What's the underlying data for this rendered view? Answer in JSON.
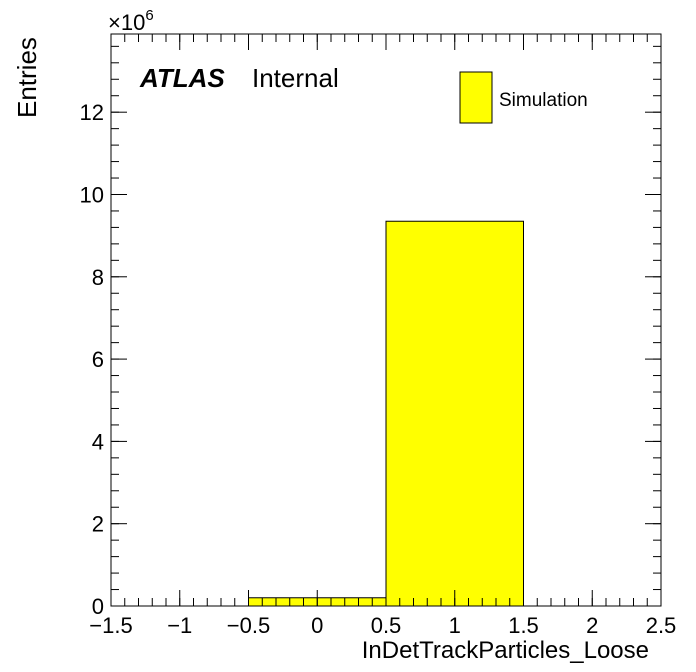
{
  "chart_data": {
    "type": "bar",
    "histogram": true,
    "bins": [
      {
        "low": -0.5,
        "high": 0.5,
        "value": 0.2
      },
      {
        "low": 0.5,
        "high": 1.5,
        "value": 9.35
      }
    ],
    "xlabel": "InDetTrackParticles_Loose",
    "ylabel": "Entries",
    "y_multiplier_base": "×10",
    "y_multiplier_exp": "6",
    "xlim": [
      -1.5,
      2.5
    ],
    "ylim": [
      0,
      13.9
    ],
    "x_major_ticks": [
      -1.5,
      -1,
      -0.5,
      0,
      0.5,
      1,
      1.5,
      2,
      2.5
    ],
    "x_tick_labels": [
      "−1.5",
      "−1",
      "−0.5",
      "0",
      "0.5",
      "1",
      "1.5",
      "2",
      "2.5"
    ],
    "y_major_ticks": [
      0,
      2,
      4,
      6,
      8,
      10,
      12
    ],
    "y_tick_labels": [
      "0",
      "2",
      "4",
      "6",
      "8",
      "10",
      "12"
    ],
    "legend": {
      "entries": [
        {
          "name": "Simulation",
          "color": "#ffff00"
        }
      ],
      "placement": "top-right"
    },
    "annotation": {
      "experiment": "ATLAS",
      "status": "Internal"
    },
    "fill_color": "#ffff00",
    "line_color": "#000000",
    "grid": false
  }
}
